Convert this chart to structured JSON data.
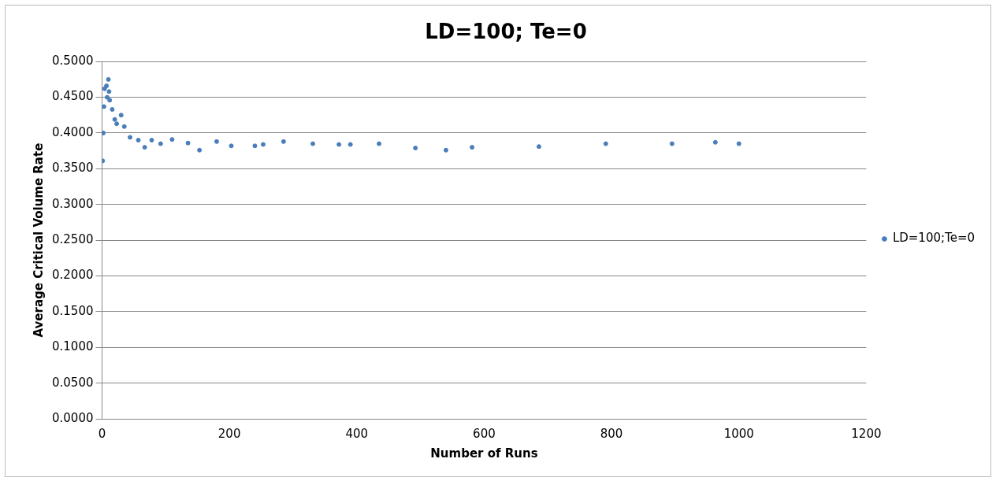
{
  "chart_data": {
    "type": "scatter",
    "title": "LD=100; Te=0",
    "xlabel": "Number of Runs",
    "ylabel": "Average Critical Volume Rate",
    "xlim": [
      0,
      1200
    ],
    "xticks": [
      0,
      200,
      400,
      600,
      800,
      1000,
      1200
    ],
    "ylim": [
      0,
      0.5
    ],
    "yticks": [
      {
        "value": 0,
        "label": "0.0000"
      },
      {
        "value": 0.05,
        "label": "0.0500"
      },
      {
        "value": 0.1,
        "label": "0.1000"
      },
      {
        "value": 0.15,
        "label": "0.1500"
      },
      {
        "value": 0.2,
        "label": "0.2000"
      },
      {
        "value": 0.25,
        "label": "0.2500"
      },
      {
        "value": 0.3,
        "label": "0.3000"
      },
      {
        "value": 0.35,
        "label": "0.3500"
      },
      {
        "value": 0.4,
        "label": "0.4000"
      },
      {
        "value": 0.45,
        "label": "0.4500"
      },
      {
        "value": 0.5,
        "label": "0.5000"
      }
    ],
    "grid": "y",
    "legend": "right",
    "marker": "circle",
    "series": [
      {
        "name": "LD=100;Te=0",
        "color": "#4a7ebb",
        "x": [
          1,
          2,
          3,
          4,
          7,
          8,
          10,
          11,
          12,
          16,
          20,
          23,
          30,
          35,
          44,
          57,
          67,
          78,
          92,
          110,
          135,
          153,
          180,
          203,
          240,
          253,
          285,
          331,
          372,
          390,
          435,
          492,
          540,
          581,
          686,
          791,
          895,
          963,
          1000
        ],
        "values": [
          0.361,
          0.4,
          0.437,
          0.462,
          0.466,
          0.45,
          0.475,
          0.458,
          0.446,
          0.433,
          0.419,
          0.413,
          0.425,
          0.409,
          0.394,
          0.39,
          0.38,
          0.39,
          0.385,
          0.391,
          0.386,
          0.376,
          0.388,
          0.382,
          0.382,
          0.384,
          0.388,
          0.385,
          0.384,
          0.384,
          0.385,
          0.379,
          0.376,
          0.38,
          0.381,
          0.385,
          0.385,
          0.387,
          0.385
        ]
      }
    ]
  }
}
